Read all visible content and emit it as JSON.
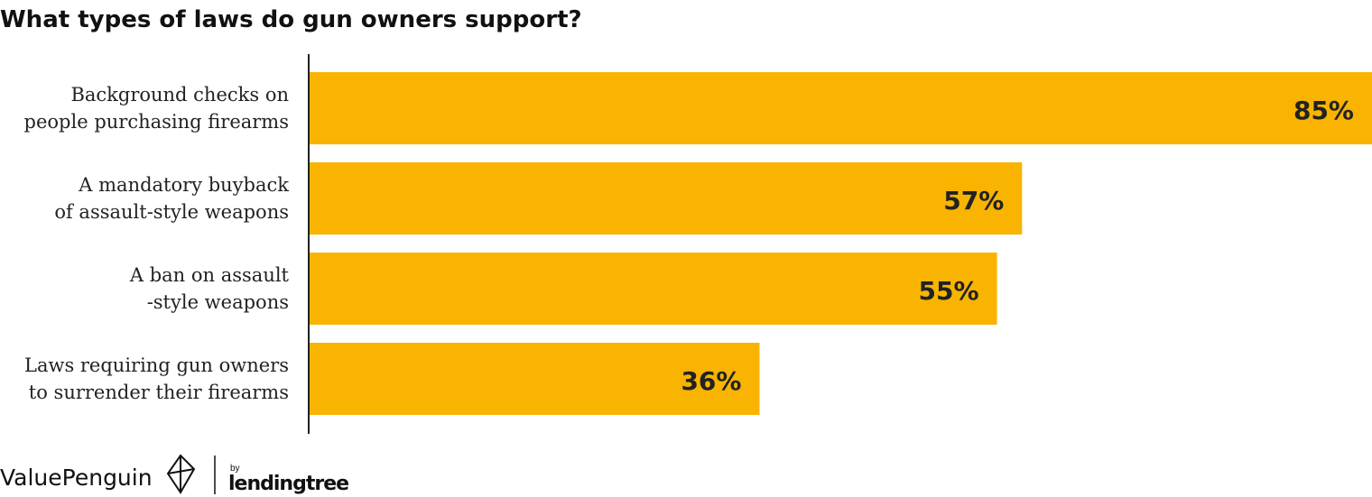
{
  "chart_data": {
    "type": "bar",
    "orientation": "horizontal",
    "title": "What types of laws do gun owners support?",
    "categories": [
      "Background checks on\npeople purchasing firearms",
      "A mandatory buyback\nof assault-style weapons",
      "A ban on assault\n-style weapons",
      "Laws requiring gun owners\nto surrender their firearms"
    ],
    "values": [
      85,
      57,
      55,
      36
    ],
    "value_labels": [
      "85%",
      "57%",
      "55%",
      "36%"
    ],
    "color": "#f8b400"
  },
  "footer": {
    "brand": "ValuePenguin",
    "by": "by",
    "partner": "lendingtree"
  }
}
